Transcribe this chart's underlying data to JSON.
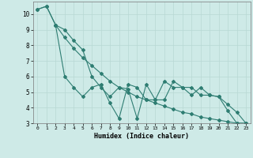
{
  "xlabel": "Humidex (Indice chaleur)",
  "background_color": "#ceeae7",
  "grid_color": "#b8d8d4",
  "line_color": "#2e7d72",
  "xlim": [
    -0.5,
    23.5
  ],
  "ylim": [
    3,
    10.8
  ],
  "yticks": [
    3,
    4,
    5,
    6,
    7,
    8,
    9,
    10
  ],
  "xticks": [
    0,
    1,
    2,
    3,
    4,
    5,
    6,
    7,
    8,
    9,
    10,
    11,
    12,
    13,
    14,
    15,
    16,
    17,
    18,
    19,
    20,
    21,
    22,
    23
  ],
  "series1_x": [
    0,
    1,
    2,
    3,
    4,
    5,
    6,
    7,
    8,
    9,
    10,
    11,
    12,
    13,
    14,
    15,
    16,
    17,
    18,
    19,
    20,
    21,
    22,
    23
  ],
  "series1_y": [
    10.3,
    10.5,
    9.3,
    8.5,
    7.8,
    7.2,
    6.7,
    6.2,
    5.7,
    5.3,
    5.0,
    4.7,
    4.5,
    4.3,
    4.1,
    3.9,
    3.7,
    3.6,
    3.4,
    3.3,
    3.2,
    3.1,
    3.0,
    3.0
  ],
  "series2_x": [
    0,
    1,
    2,
    3,
    4,
    5,
    6,
    7,
    8,
    9,
    10,
    11,
    12,
    13,
    14,
    15,
    16,
    17,
    18,
    19,
    20,
    21,
    22,
    23
  ],
  "series2_y": [
    10.3,
    10.5,
    9.3,
    9.0,
    8.3,
    7.7,
    6.0,
    5.3,
    4.7,
    5.3,
    5.2,
    3.3,
    5.5,
    4.5,
    4.5,
    5.7,
    5.3,
    5.3,
    4.8,
    4.8,
    4.7,
    3.8,
    3.0,
    3.0
  ],
  "series3_x": [
    2,
    3,
    4,
    5,
    6,
    7,
    8,
    9,
    10,
    11,
    12,
    13,
    14,
    15,
    16,
    17,
    18,
    19,
    20,
    21,
    22,
    23
  ],
  "series3_y": [
    9.3,
    6.0,
    5.3,
    4.7,
    5.3,
    5.5,
    4.3,
    3.3,
    5.5,
    5.3,
    4.5,
    4.5,
    5.7,
    5.3,
    5.3,
    4.8,
    5.3,
    4.8,
    4.7,
    4.2,
    3.7,
    3.0
  ]
}
